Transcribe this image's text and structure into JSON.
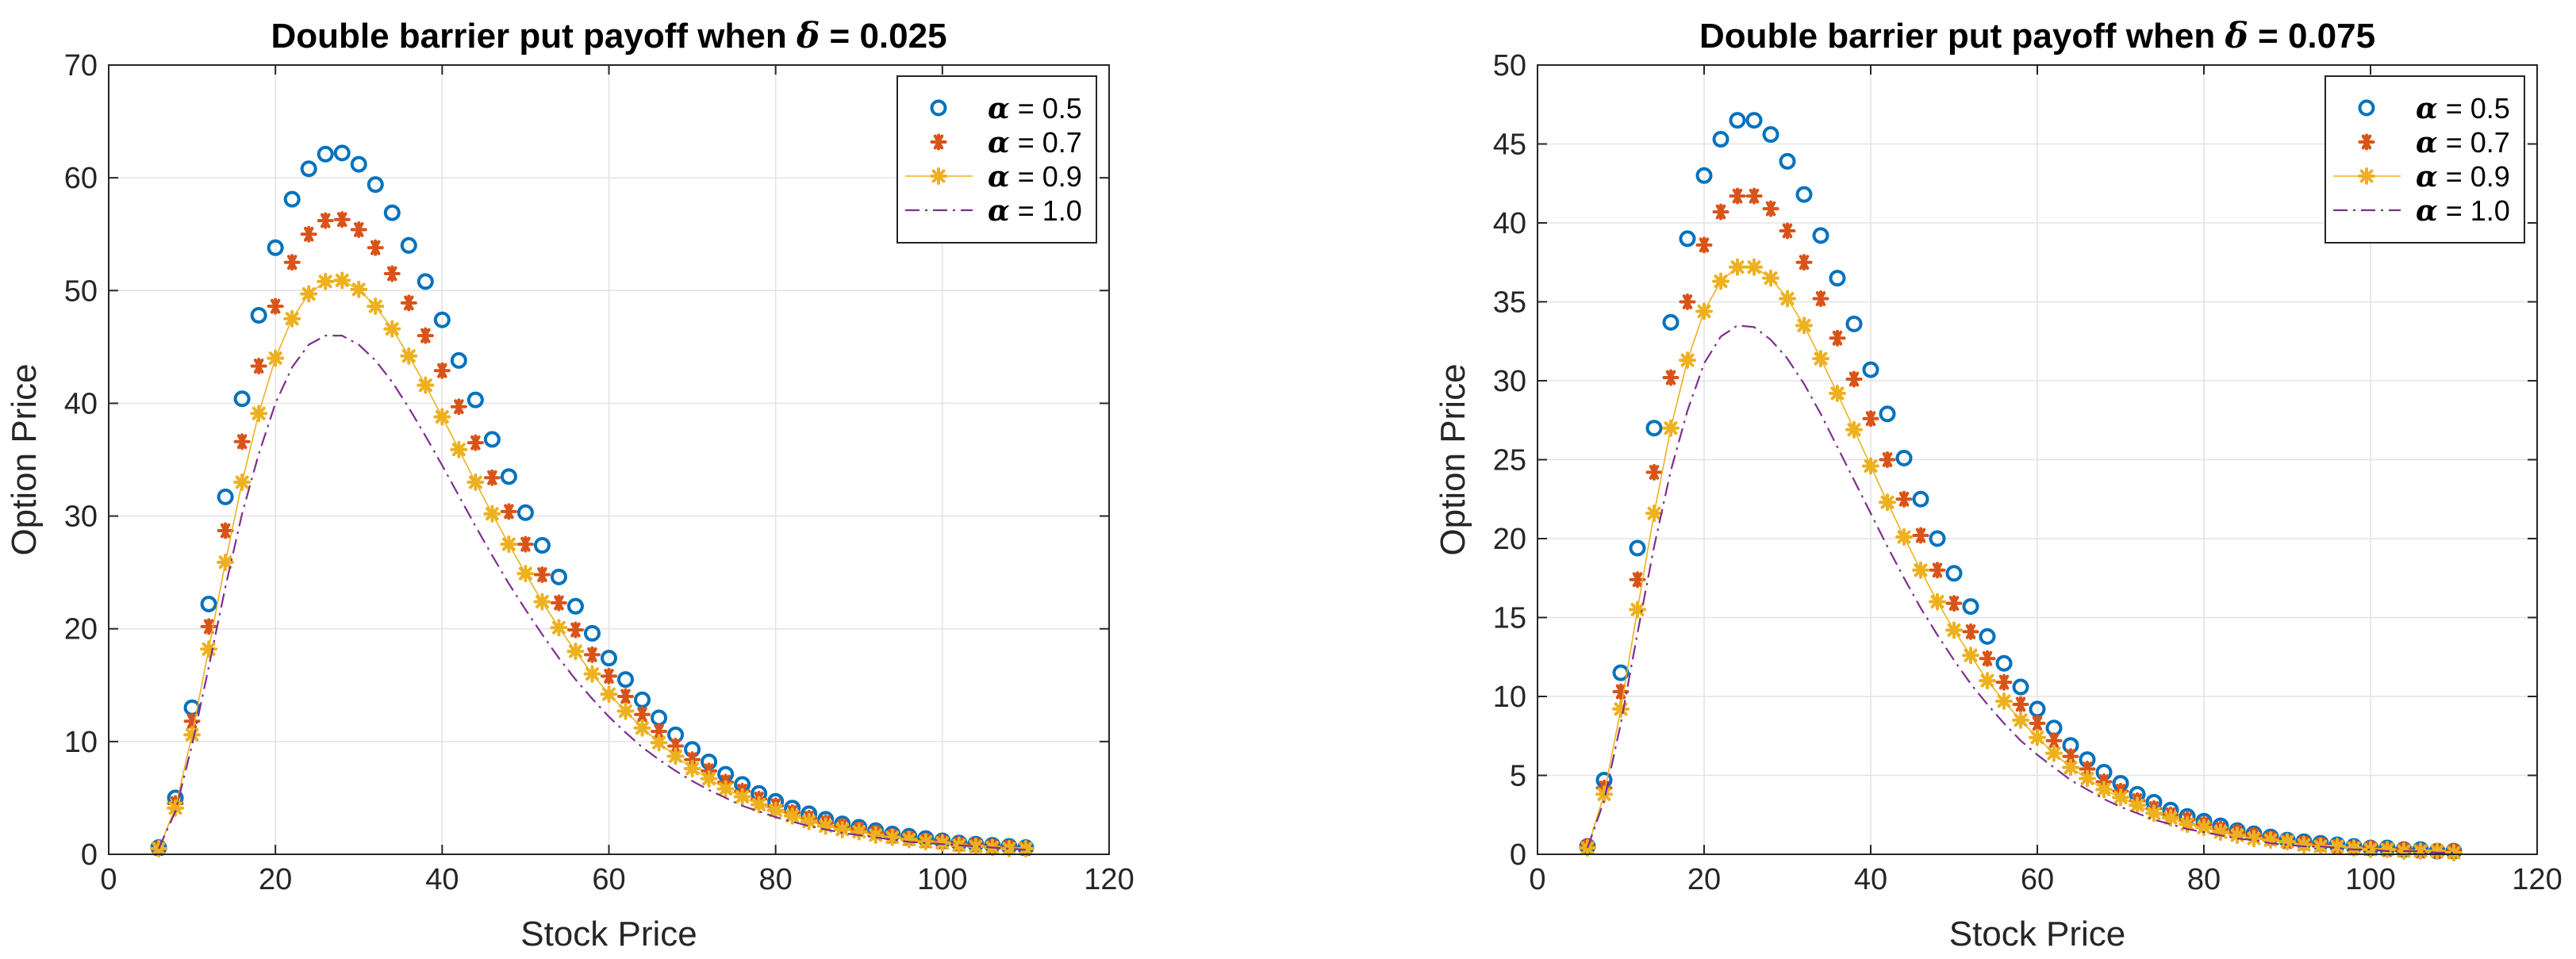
{
  "chart_data": [
    {
      "type": "scatter",
      "title": "Double barrier put payoff when δ = 0.025",
      "title_prefix": "Double barrier put payoff when",
      "title_symbol": "δ",
      "title_value": "= 0.025",
      "xlabel": "Stock Price",
      "ylabel": "Option Price",
      "xlim": [
        0,
        120
      ],
      "ylim": [
        0,
        70
      ],
      "xticks": [
        0,
        20,
        40,
        60,
        80,
        100,
        120
      ],
      "yticks": [
        0,
        10,
        20,
        30,
        40,
        50,
        60,
        70
      ],
      "grid": true,
      "legend_position": "top-right",
      "x": [
        6,
        8,
        10,
        12,
        14,
        16,
        18,
        20,
        22,
        24,
        26,
        28,
        30,
        32,
        34,
        36,
        38,
        40,
        42,
        44,
        46,
        48,
        50,
        52,
        54,
        56,
        58,
        60,
        62,
        64,
        66,
        68,
        70,
        72,
        74,
        76,
        78,
        80,
        82,
        84,
        86,
        88,
        90,
        92,
        94,
        96,
        98,
        100,
        102,
        104,
        106,
        108,
        110
      ],
      "series": [
        {
          "name": "α = 0.5",
          "symbol": "α",
          "value_label": "= 0.5",
          "marker": "circle",
          "color": "#0072BD",
          "values": [
            0.6,
            5.0,
            13.0,
            22.2,
            31.7,
            40.4,
            47.8,
            53.8,
            58.1,
            60.8,
            62.1,
            62.2,
            61.2,
            59.4,
            56.9,
            54.0,
            50.8,
            47.4,
            43.8,
            40.3,
            36.8,
            33.5,
            30.3,
            27.4,
            24.6,
            22.0,
            19.6,
            17.4,
            15.5,
            13.7,
            12.1,
            10.6,
            9.3,
            8.2,
            7.1,
            6.2,
            5.4,
            4.7,
            4.1,
            3.6,
            3.1,
            2.7,
            2.4,
            2.1,
            1.8,
            1.6,
            1.4,
            1.2,
            1.0,
            0.9,
            0.8,
            0.7,
            0.6
          ]
        },
        {
          "name": "α = 0.7",
          "symbol": "α",
          "value_label": "= 0.7",
          "marker": "asterisk",
          "color": "#D95319",
          "values": [
            0.5,
            4.5,
            11.8,
            20.2,
            28.7,
            36.6,
            43.3,
            48.6,
            52.5,
            55.0,
            56.2,
            56.3,
            55.4,
            53.8,
            51.5,
            48.9,
            46.0,
            42.9,
            39.7,
            36.5,
            33.4,
            30.4,
            27.5,
            24.8,
            22.3,
            19.9,
            17.7,
            15.8,
            14.0,
            12.4,
            10.9,
            9.6,
            8.4,
            7.4,
            6.4,
            5.6,
            4.9,
            4.3,
            3.7,
            3.2,
            2.8,
            2.5,
            2.2,
            1.9,
            1.6,
            1.4,
            1.2,
            1.1,
            0.9,
            0.8,
            0.7,
            0.6,
            0.5
          ]
        },
        {
          "name": "α = 0.9",
          "symbol": "α",
          "value_label": "= 0.9",
          "marker": "star-line",
          "color": "#EDB120",
          "values": [
            0.5,
            4.1,
            10.6,
            18.2,
            25.9,
            33.0,
            39.1,
            44.0,
            47.5,
            49.7,
            50.8,
            50.9,
            50.1,
            48.6,
            46.6,
            44.2,
            41.6,
            38.8,
            35.9,
            33.0,
            30.2,
            27.5,
            24.9,
            22.4,
            20.1,
            18.0,
            16.0,
            14.2,
            12.7,
            11.2,
            9.9,
            8.7,
            7.6,
            6.7,
            5.8,
            5.1,
            4.4,
            3.9,
            3.4,
            2.9,
            2.5,
            2.2,
            2.0,
            1.7,
            1.5,
            1.3,
            1.1,
            1.0,
            0.8,
            0.7,
            0.6,
            0.5,
            0.5
          ]
        },
        {
          "name": "α = 1.0",
          "symbol": "α",
          "value_label": "= 1.0",
          "marker": "dashdot",
          "color": "#7E2F8E",
          "values": [
            0.5,
            3.8,
            9.7,
            16.6,
            23.7,
            30.2,
            35.5,
            40.0,
            43.2,
            45.2,
            46.0,
            46.0,
            45.2,
            43.8,
            41.9,
            39.6,
            37.1,
            34.5,
            31.8,
            29.1,
            26.5,
            24.0,
            21.7,
            19.5,
            17.4,
            15.5,
            13.8,
            12.2,
            10.8,
            9.5,
            8.4,
            7.4,
            6.5,
            5.7,
            5.0,
            4.3,
            3.8,
            3.3,
            2.9,
            2.5,
            2.2,
            1.9,
            1.7,
            1.5,
            1.3,
            1.1,
            1.0,
            0.9,
            0.8,
            0.7,
            0.6,
            0.5,
            0.4
          ]
        }
      ]
    },
    {
      "type": "scatter",
      "title": "Double barrier put payoff when δ = 0.075",
      "title_prefix": "Double barrier put payoff when",
      "title_symbol": "δ",
      "title_value": "= 0.075",
      "xlabel": "Stock Price",
      "ylabel": "Option Price",
      "xlim": [
        0,
        120
      ],
      "ylim": [
        0,
        50
      ],
      "xticks": [
        0,
        20,
        40,
        60,
        80,
        100,
        120
      ],
      "yticks": [
        0,
        5,
        10,
        15,
        20,
        25,
        30,
        35,
        40,
        45,
        50
      ],
      "grid": true,
      "legend_position": "top-right",
      "x": [
        6,
        8,
        10,
        12,
        14,
        16,
        18,
        20,
        22,
        24,
        26,
        28,
        30,
        32,
        34,
        36,
        38,
        40,
        42,
        44,
        46,
        48,
        50,
        52,
        54,
        56,
        58,
        60,
        62,
        64,
        66,
        68,
        70,
        72,
        74,
        76,
        78,
        80,
        82,
        84,
        86,
        88,
        90,
        92,
        94,
        96,
        98,
        100,
        102,
        104,
        106,
        108,
        110
      ],
      "series": [
        {
          "name": "α = 0.5",
          "symbol": "α",
          "value_label": "= 0.5",
          "marker": "circle",
          "color": "#0072BD",
          "values": [
            0.5,
            4.7,
            11.5,
            19.4,
            27.0,
            33.7,
            39.0,
            43.0,
            45.3,
            46.5,
            46.5,
            45.6,
            43.9,
            41.8,
            39.2,
            36.5,
            33.6,
            30.7,
            27.9,
            25.1,
            22.5,
            20.0,
            17.8,
            15.7,
            13.8,
            12.1,
            10.6,
            9.2,
            8.0,
            6.9,
            6.0,
            5.2,
            4.5,
            3.8,
            3.3,
            2.8,
            2.4,
            2.1,
            1.8,
            1.5,
            1.3,
            1.1,
            0.9,
            0.8,
            0.7,
            0.6,
            0.5,
            0.4,
            0.4,
            0.3,
            0.3,
            0.2,
            0.2
          ]
        },
        {
          "name": "α = 0.7",
          "symbol": "α",
          "value_label": "= 0.7",
          "marker": "asterisk",
          "color": "#D95319",
          "values": [
            0.5,
            4.2,
            10.3,
            17.4,
            24.2,
            30.2,
            35.0,
            38.6,
            40.7,
            41.7,
            41.7,
            40.9,
            39.5,
            37.5,
            35.2,
            32.7,
            30.1,
            27.6,
            25.0,
            22.5,
            20.2,
            18.0,
            15.9,
            14.1,
            12.4,
            10.9,
            9.5,
            8.3,
            7.2,
            6.2,
            5.4,
            4.6,
            4.0,
            3.4,
            2.9,
            2.5,
            2.2,
            1.9,
            1.6,
            1.4,
            1.2,
            1.0,
            0.8,
            0.7,
            0.6,
            0.5,
            0.4,
            0.4,
            0.3,
            0.3,
            0.2,
            0.2,
            0.2
          ]
        },
        {
          "name": "α = 0.9",
          "symbol": "α",
          "value_label": "= 0.9",
          "marker": "star-line",
          "color": "#EDB120",
          "values": [
            0.4,
            3.8,
            9.2,
            15.5,
            21.6,
            27.0,
            31.3,
            34.4,
            36.3,
            37.2,
            37.2,
            36.5,
            35.2,
            33.5,
            31.4,
            29.2,
            26.9,
            24.6,
            22.3,
            20.1,
            18.0,
            16.0,
            14.2,
            12.6,
            11.0,
            9.7,
            8.5,
            7.4,
            6.4,
            5.5,
            4.8,
            4.1,
            3.6,
            3.1,
            2.6,
            2.3,
            1.9,
            1.7,
            1.4,
            1.2,
            1.0,
            0.9,
            0.8,
            0.6,
            0.5,
            0.5,
            0.4,
            0.3,
            0.3,
            0.2,
            0.2,
            0.2,
            0.1
          ]
        },
        {
          "name": "α = 1.0",
          "symbol": "α",
          "value_label": "= 1.0",
          "marker": "dashdot",
          "color": "#7E2F8E",
          "values": [
            0.4,
            3.4,
            8.3,
            14.0,
            19.5,
            24.3,
            28.1,
            31.1,
            32.8,
            33.5,
            33.4,
            32.6,
            31.4,
            29.8,
            27.9,
            25.8,
            23.7,
            21.6,
            19.5,
            17.5,
            15.6,
            13.9,
            12.3,
            10.8,
            9.5,
            8.3,
            7.2,
            6.3,
            5.5,
            4.7,
            4.1,
            3.5,
            3.0,
            2.6,
            2.2,
            1.9,
            1.6,
            1.4,
            1.2,
            1.0,
            0.9,
            0.7,
            0.6,
            0.5,
            0.5,
            0.4,
            0.3,
            0.3,
            0.2,
            0.2,
            0.2,
            0.1,
            0.1
          ]
        }
      ]
    }
  ]
}
